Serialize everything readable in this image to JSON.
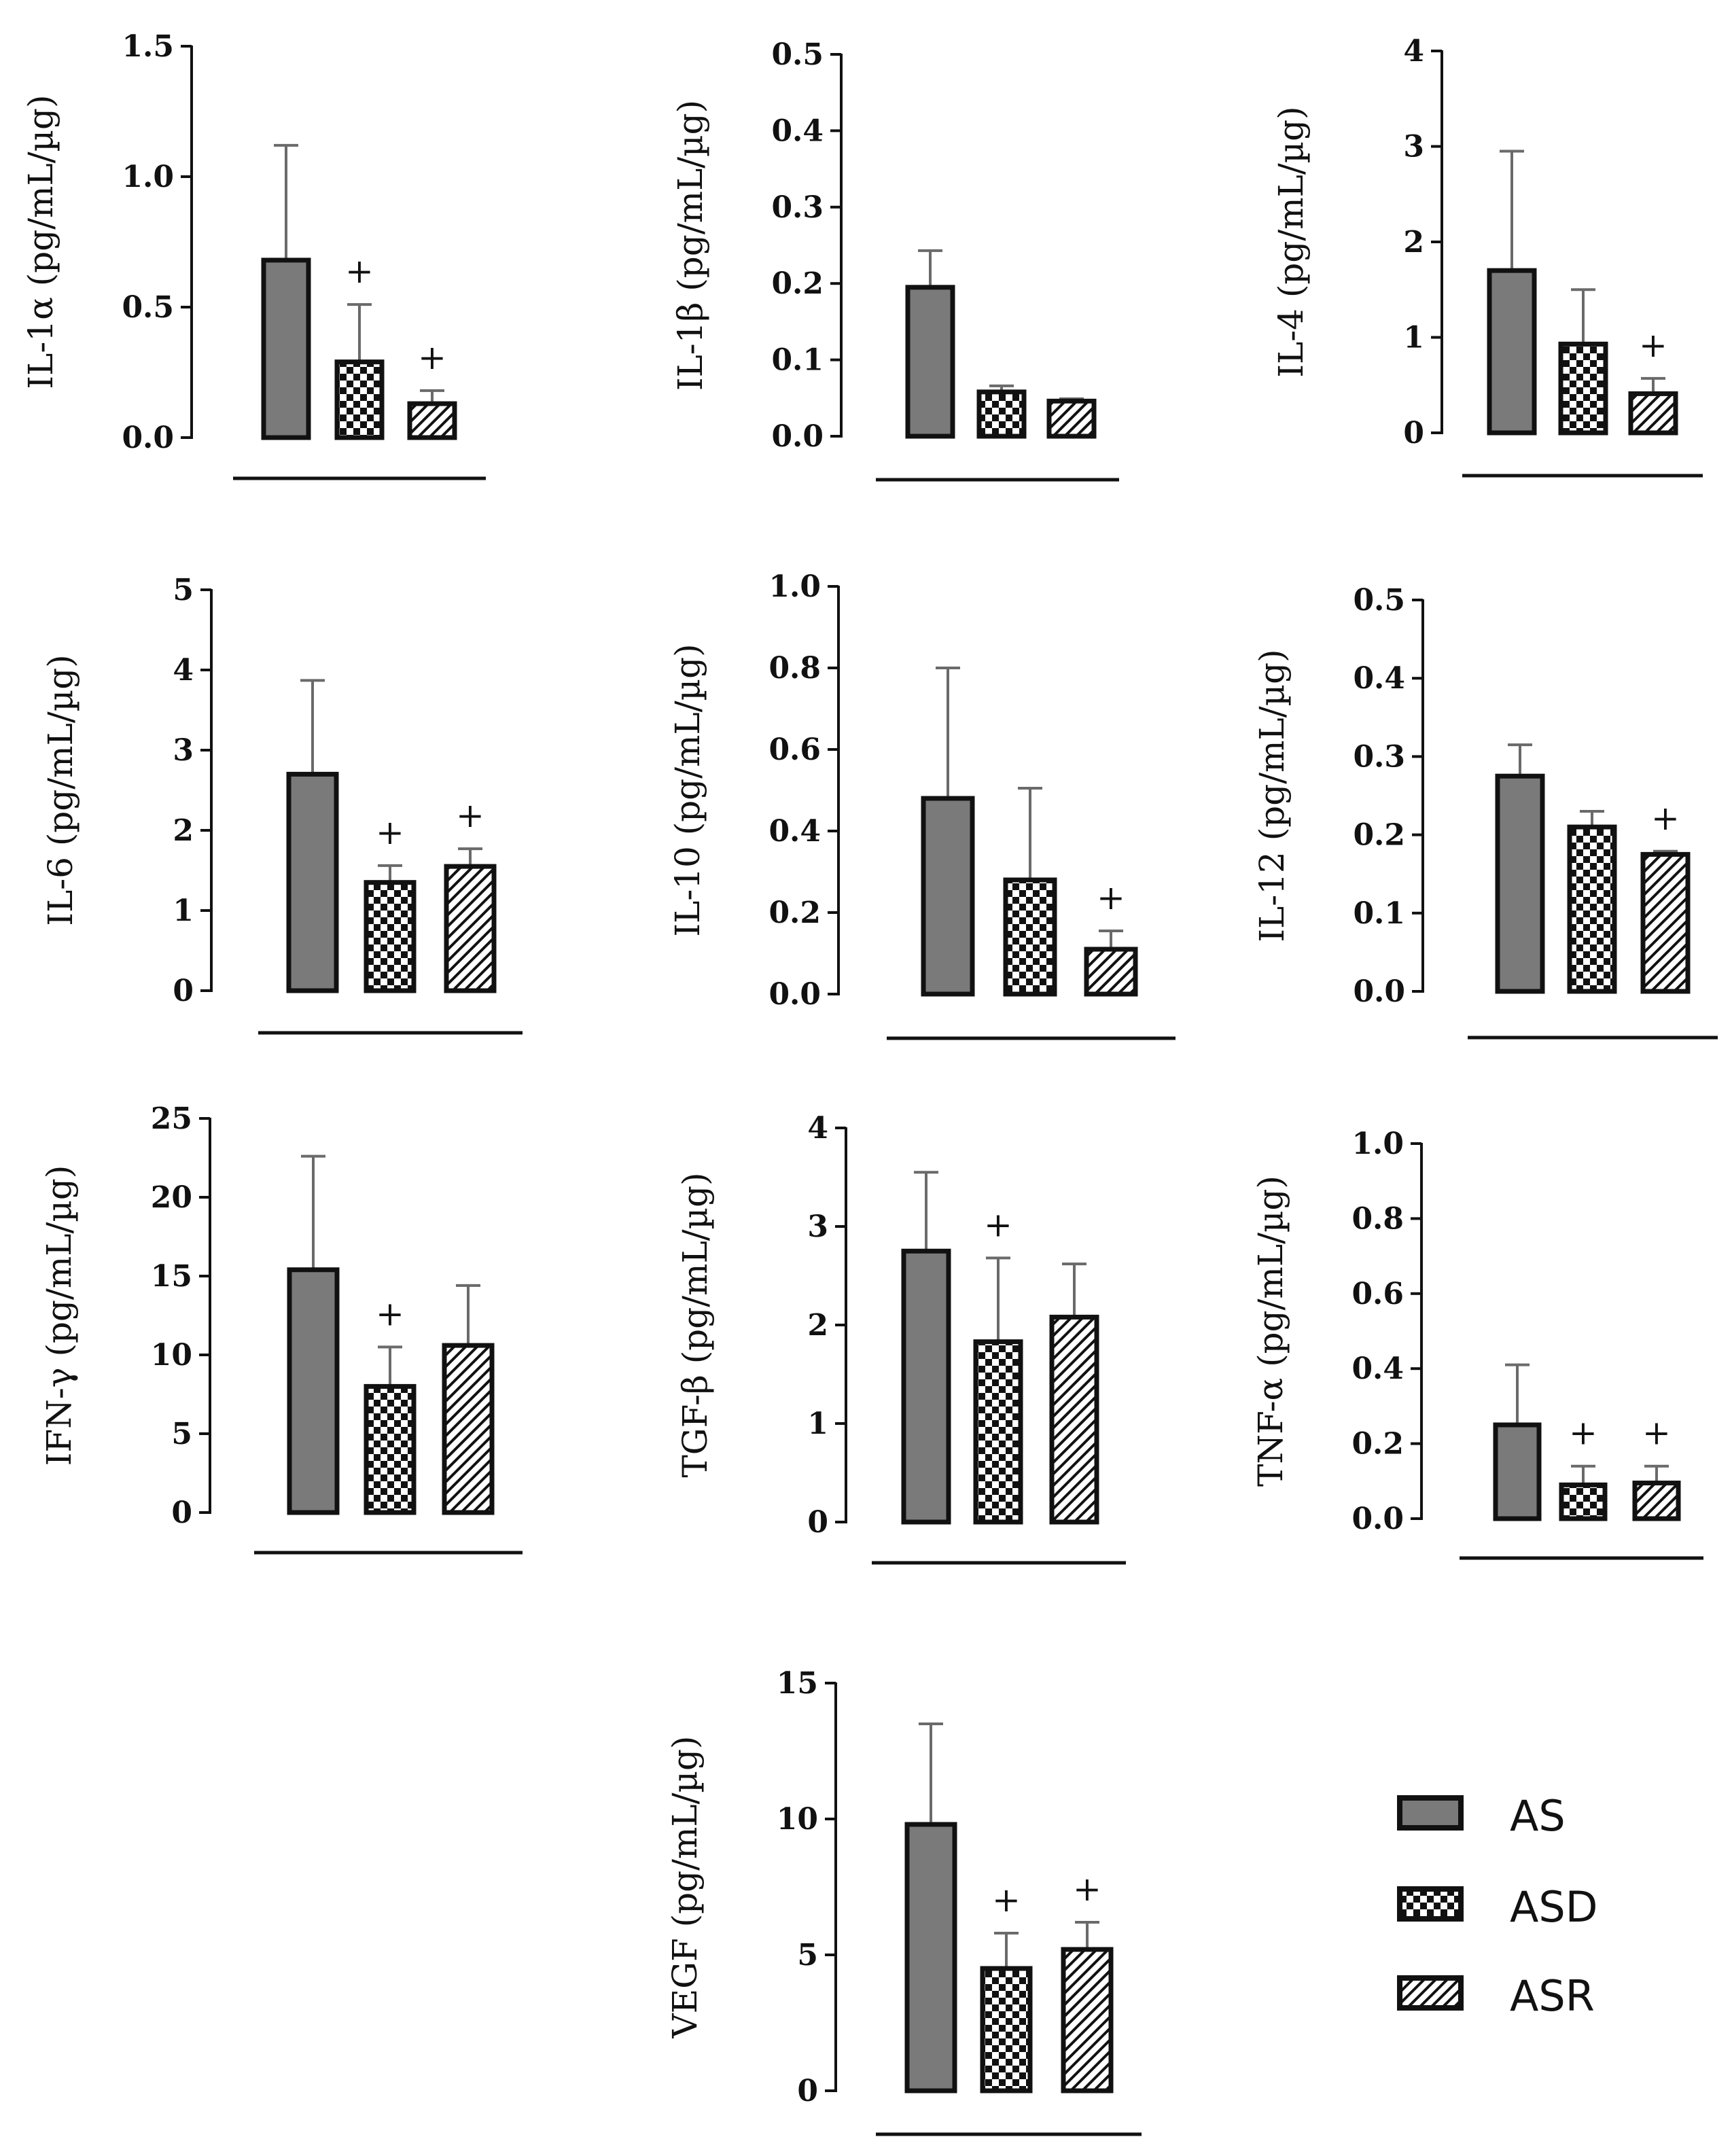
{
  "colors": {
    "AS": "#7a7a7a",
    "ink": "#111111",
    "background": "#ffffff"
  },
  "legend": [
    {
      "group": "AS",
      "label": "AS",
      "pattern": "solid-gray"
    },
    {
      "group": "ASD",
      "label": "ASD",
      "pattern": "checker"
    },
    {
      "group": "ASR",
      "label": "ASR",
      "pattern": "diagonal-hatch"
    }
  ],
  "chart_data": [
    {
      "type": "bar",
      "title": "",
      "ylabel": "IL-1α (pg/mL/µg)",
      "ylim": [
        0,
        1.5
      ],
      "yticks": [
        "0.0",
        "0.5",
        "1.0",
        "1.5"
      ],
      "categories": [
        "AS",
        "ASD",
        "ASR"
      ],
      "values": [
        0.68,
        0.29,
        0.13
      ],
      "errors": [
        0.44,
        0.22,
        0.05
      ],
      "significance": [
        "",
        "+",
        "+"
      ]
    },
    {
      "type": "bar",
      "title": "",
      "ylabel": "IL-1β (pg/mL/µg)",
      "ylim": [
        0,
        0.5
      ],
      "yticks": [
        "0.0",
        "0.1",
        "0.2",
        "0.3",
        "0.4",
        "0.5"
      ],
      "categories": [
        "AS",
        "ASD",
        "ASR"
      ],
      "values": [
        0.195,
        0.058,
        0.046
      ],
      "errors": [
        0.048,
        0.008,
        0.003
      ],
      "significance": [
        "",
        "",
        ""
      ]
    },
    {
      "type": "bar",
      "title": "",
      "ylabel": "IL-4 (pg/mL/µg)",
      "ylim": [
        0,
        4
      ],
      "yticks": [
        "0",
        "1",
        "2",
        "3",
        "4"
      ],
      "categories": [
        "AS",
        "ASD",
        "ASR"
      ],
      "values": [
        1.7,
        0.93,
        0.41
      ],
      "errors": [
        1.25,
        0.57,
        0.16
      ],
      "significance": [
        "",
        "",
        "+"
      ]
    },
    {
      "type": "bar",
      "title": "",
      "ylabel": "IL-6 (pg/mL/µg)",
      "ylim": [
        0,
        5
      ],
      "yticks": [
        "0",
        "1",
        "2",
        "3",
        "4",
        "5"
      ],
      "categories": [
        "AS",
        "ASD",
        "ASR"
      ],
      "values": [
        2.7,
        1.35,
        1.55
      ],
      "errors": [
        1.17,
        0.21,
        0.22
      ],
      "significance": [
        "",
        "+",
        "+"
      ]
    },
    {
      "type": "bar",
      "title": "",
      "ylabel": "IL-10 (pg/mL/µg)",
      "ylim": [
        0,
        1.0
      ],
      "yticks": [
        "0.0",
        "0.2",
        "0.4",
        "0.6",
        "0.8",
        "1.0"
      ],
      "categories": [
        "AS",
        "ASD",
        "ASR"
      ],
      "values": [
        0.48,
        0.28,
        0.11
      ],
      "errors": [
        0.32,
        0.225,
        0.045
      ],
      "significance": [
        "",
        "",
        "+"
      ]
    },
    {
      "type": "bar",
      "title": "",
      "ylabel": "IL-12 (pg/mL/µg)",
      "ylim": [
        0,
        0.5
      ],
      "yticks": [
        "0.0",
        "0.1",
        "0.2",
        "0.3",
        "0.4",
        "0.5"
      ],
      "categories": [
        "AS",
        "ASD",
        "ASR"
      ],
      "values": [
        0.275,
        0.21,
        0.175
      ],
      "errors": [
        0.04,
        0.02,
        0.004
      ],
      "significance": [
        "",
        "",
        "+"
      ]
    },
    {
      "type": "bar",
      "title": "",
      "ylabel": "IFN-γ (pg/mL/µg)",
      "ylim": [
        0,
        25
      ],
      "yticks": [
        "0",
        "5",
        "10",
        "15",
        "20",
        "25"
      ],
      "categories": [
        "AS",
        "ASD",
        "ASR"
      ],
      "values": [
        15.4,
        8.0,
        10.6
      ],
      "errors": [
        7.2,
        2.5,
        3.8
      ],
      "significance": [
        "",
        "+",
        ""
      ]
    },
    {
      "type": "bar",
      "title": "",
      "ylabel": "TGF-β (pg/mL/µg)",
      "ylim": [
        0,
        4
      ],
      "yticks": [
        "0",
        "1",
        "2",
        "3",
        "4"
      ],
      "categories": [
        "AS",
        "ASD",
        "ASR"
      ],
      "values": [
        2.75,
        1.83,
        2.08
      ],
      "errors": [
        0.8,
        0.85,
        0.54
      ],
      "significance": [
        "",
        "+",
        ""
      ]
    },
    {
      "type": "bar",
      "title": "",
      "ylabel": "TNF-α (pg/mL/µg)",
      "ylim": [
        0,
        1.0
      ],
      "yticks": [
        "0.0",
        "0.2",
        "0.4",
        "0.6",
        "0.8",
        "1.0"
      ],
      "categories": [
        "AS",
        "ASD",
        "ASR"
      ],
      "values": [
        0.25,
        0.09,
        0.095
      ],
      "errors": [
        0.16,
        0.05,
        0.045
      ],
      "significance": [
        "",
        "+",
        "+"
      ]
    },
    {
      "type": "bar",
      "title": "",
      "ylabel": "VEGF (pg/mL/µg)",
      "ylim": [
        0,
        15
      ],
      "yticks": [
        "0",
        "5",
        "10",
        "15"
      ],
      "categories": [
        "AS",
        "ASD",
        "ASR"
      ],
      "values": [
        9.8,
        4.5,
        5.2
      ],
      "errors": [
        3.7,
        1.3,
        1.0
      ],
      "significance": [
        "",
        "+",
        "+"
      ]
    }
  ]
}
